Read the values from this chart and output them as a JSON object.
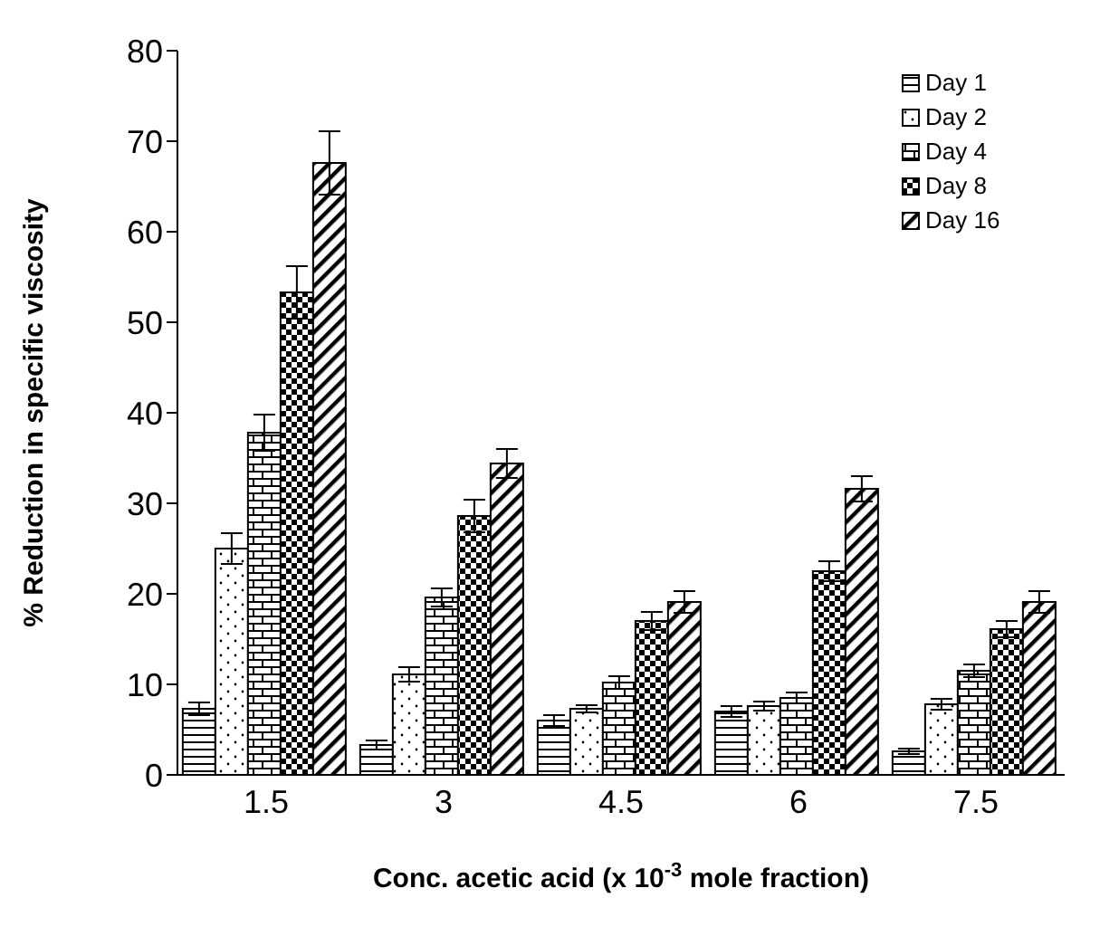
{
  "chart_data": {
    "type": "bar",
    "ylabel": "% Reduction in specific viscosity",
    "xlabel": "Conc. acetic acid (x 10$^{-3}$ mole fraction)",
    "categories": [
      "1.5",
      "3",
      "4.5",
      "6",
      "7.5"
    ],
    "series": [
      {
        "name": "Day 1",
        "color": "#000000",
        "values": [
          7.3,
          3.3,
          6,
          7,
          2.6
        ],
        "errors": [
          0.7,
          0.5,
          0.6,
          0.6,
          0.3
        ]
      },
      {
        "name": "Day 2",
        "color": "#000000",
        "values": [
          25,
          11.1,
          7.3,
          7.6,
          7.8
        ],
        "errors": [
          1.7,
          0.8,
          0.4,
          0.5,
          0.6
        ]
      },
      {
        "name": "Day 4",
        "color": "#000000",
        "values": [
          37.8,
          19.6,
          10.2,
          8.5,
          11.5
        ],
        "errors": [
          2,
          1,
          0.7,
          0.6,
          0.7
        ]
      },
      {
        "name": "Day 8",
        "color": "#000000",
        "values": [
          53.3,
          28.6,
          17,
          22.5,
          16.1
        ],
        "errors": [
          2.9,
          1.8,
          1,
          1.1,
          0.9
        ]
      },
      {
        "name": "Day 16",
        "color": "#000000",
        "values": [
          67.6,
          34.4,
          19.1,
          31.6,
          19.1
        ],
        "errors": [
          3.5,
          1.6,
          1.2,
          1.4,
          1.2
        ]
      }
    ],
    "ylim": [
      0,
      80
    ],
    "yticks": [
      0,
      10,
      20,
      30,
      40,
      50,
      60,
      70,
      80
    ],
    "grid": false,
    "legend": "top right"
  }
}
